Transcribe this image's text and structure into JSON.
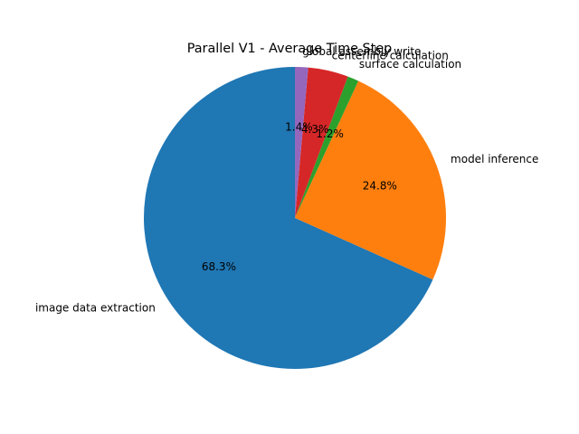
{
  "chart_data": {
    "type": "pie",
    "title": "Parallel V1 - Average Time Step",
    "start_angle_deg": 90,
    "direction": "counterclockwise",
    "legend": "none",
    "slices": [
      {
        "label": "image data extraction",
        "value": 68.3,
        "pct_text": "68.3%",
        "color": "#1f77b4"
      },
      {
        "label": "model inference",
        "value": 24.8,
        "pct_text": "24.8%",
        "color": "#ff7f0e"
      },
      {
        "label": "surface calculation",
        "value": 1.2,
        "pct_text": "1.2%",
        "color": "#2ca02c"
      },
      {
        "label": "centerline calculation",
        "value": 4.3,
        "pct_text": "4.3%",
        "color": "#d62728"
      },
      {
        "label": "global assembly write",
        "value": 1.4,
        "pct_text": "1.4%",
        "color": "#9467bd"
      }
    ]
  }
}
